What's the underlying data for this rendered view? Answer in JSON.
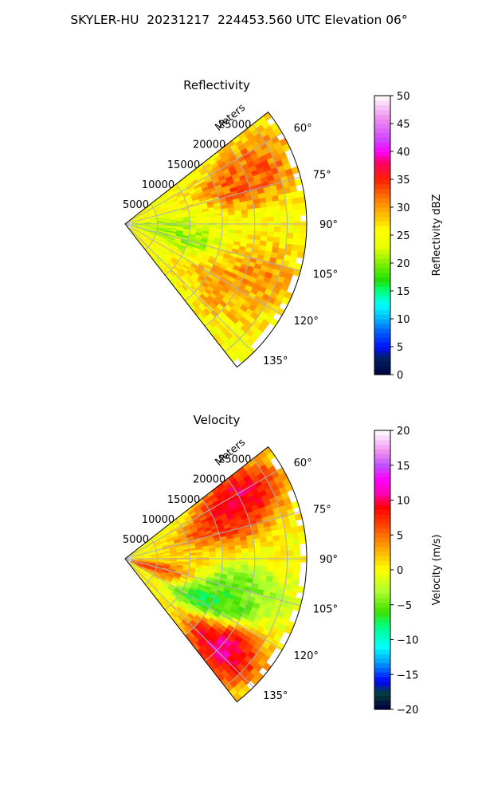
{
  "figure": {
    "suptitle": "SKYLER-HU  20231217  224453.560 UTC Elevation 06°"
  },
  "chart_data": [
    {
      "type": "heatmap",
      "projection": "polar-sector",
      "title": "Reflectivity",
      "radial_label": "Meters",
      "range_ticks": [
        "5000",
        "10000",
        "15000",
        "20000",
        "25000"
      ],
      "range_max": 28000,
      "azimuth_min": 52,
      "azimuth_max": 142,
      "azimuth_ticks": [
        "60°",
        "75°",
        "90°",
        "105°",
        "120°",
        "135°"
      ],
      "grid": true,
      "colorbar": {
        "label": "Reflectivity dBZ",
        "min": 0,
        "max": 50,
        "ticks": [
          "0",
          "5",
          "10",
          "15",
          "20",
          "25",
          "30",
          "35",
          "40",
          "45",
          "50"
        ],
        "stops": [
          "#00003c",
          "#001f66",
          "#0010ff",
          "#0066ff",
          "#00b4ff",
          "#00ffff",
          "#00ff80",
          "#20e000",
          "#80f000",
          "#e8ff00",
          "#ffff00",
          "#ffcc00",
          "#ff8800",
          "#ff2000",
          "#ff0066",
          "#ff00ff",
          "#d040ff",
          "#ee90ee",
          "#ffffff"
        ],
        "stop_values": [
          0,
          3,
          5,
          8,
          10,
          12.5,
          15,
          17,
          20,
          23,
          26,
          28,
          31,
          35,
          38,
          40,
          42,
          46,
          50
        ]
      },
      "field_features": [
        {
          "az": 70,
          "r": 19000,
          "value": 35
        },
        {
          "az": 65,
          "r": 23000,
          "value": 33
        },
        {
          "az": 110,
          "r": 22000,
          "value": 32
        },
        {
          "az": 125,
          "r": 18000,
          "value": 31
        },
        {
          "az": 102,
          "r": 9000,
          "value": 20
        },
        {
          "az": 95,
          "r": 5000,
          "value": 21
        }
      ],
      "base_value": 25
    },
    {
      "type": "heatmap",
      "projection": "polar-sector",
      "title": "Velocity",
      "radial_label": "Meters",
      "range_ticks": [
        "5000",
        "10000",
        "15000",
        "20000",
        "25000"
      ],
      "range_max": 28000,
      "azimuth_min": 52,
      "azimuth_max": 142,
      "azimuth_ticks": [
        "60°",
        "75°",
        "90°",
        "105°",
        "120°",
        "135°"
      ],
      "grid": true,
      "colorbar": {
        "label": "Velocity (m/s)",
        "min": -20,
        "max": 20,
        "ticks": [
          "−20",
          "−15",
          "−10",
          "−5",
          "0",
          "5",
          "10",
          "15",
          "20"
        ],
        "stops": [
          "#00003c",
          "#004040",
          "#0000ff",
          "#00aaff",
          "#00ffff",
          "#00ff80",
          "#40e000",
          "#b0ff30",
          "#ffff00",
          "#ffaa00",
          "#ff5000",
          "#ff0000",
          "#ff00b0",
          "#ff00ff",
          "#c050ff",
          "#ee90ee",
          "#ffffff"
        ],
        "stop_values": [
          -20,
          -17.5,
          -16,
          -13,
          -11,
          -8,
          -6,
          -3,
          0,
          3,
          6,
          9,
          11,
          13,
          15,
          17,
          20
        ]
      },
      "field_features": [
        {
          "az": 62,
          "r": 20000,
          "value": 13
        },
        {
          "az": 72,
          "r": 15000,
          "value": 9
        },
        {
          "az": 86,
          "r": 10000,
          "value": 2
        },
        {
          "az": 105,
          "r": 18000,
          "value": -6
        },
        {
          "az": 117,
          "r": 14000,
          "value": -10
        },
        {
          "az": 132,
          "r": 20000,
          "value": 14
        },
        {
          "az": 108,
          "r": 5000,
          "value": 9
        }
      ],
      "base_value": 0
    }
  ]
}
